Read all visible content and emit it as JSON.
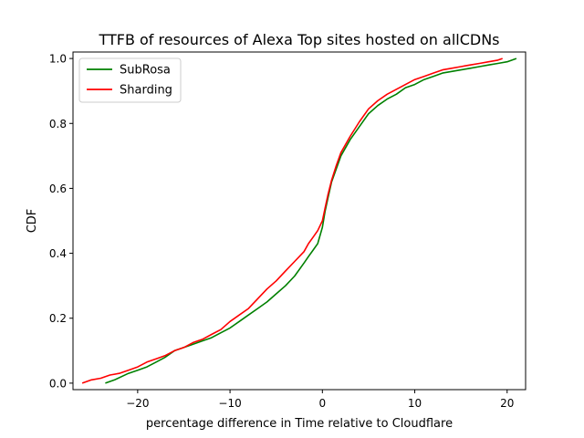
{
  "chart_data": {
    "type": "line",
    "title": "TTFB of resources of Alexa Top sites hosted on allCDNs",
    "xlabel": "percentage difference in Time relative to Cloudflare",
    "ylabel": "CDF",
    "xlim": [
      -27,
      22
    ],
    "ylim": [
      -0.02,
      1.02
    ],
    "xticks": [
      -20,
      -10,
      0,
      10,
      20
    ],
    "xtick_labels": [
      "−20",
      "−10",
      "0",
      "10",
      "20"
    ],
    "yticks": [
      0.0,
      0.2,
      0.4,
      0.6,
      0.8,
      1.0
    ],
    "ytick_labels": [
      "0.0",
      "0.2",
      "0.4",
      "0.6",
      "0.8",
      "1.0"
    ],
    "grid": false,
    "legend_position": "top-left",
    "series": [
      {
        "name": "SubRosa",
        "color": "#008000",
        "x": [
          -23.5,
          -22.5,
          -21.0,
          -20.0,
          -19.0,
          -18.0,
          -17.0,
          -16.0,
          -15.0,
          -14.0,
          -13.0,
          -12.0,
          -11.0,
          -10.0,
          -9.0,
          -8.0,
          -7.0,
          -6.0,
          -5.0,
          -4.0,
          -3.0,
          -2.0,
          -1.5,
          -1.0,
          -0.5,
          0.0,
          0.3,
          0.6,
          1.0,
          1.5,
          2.0,
          3.0,
          4.0,
          5.0,
          6.0,
          7.0,
          8.0,
          9.0,
          10.0,
          11.0,
          12.0,
          13.0,
          14.0,
          15.0,
          16.0,
          17.0,
          18.0,
          19.0,
          20.0,
          21.0
        ],
        "y": [
          0.0,
          0.01,
          0.03,
          0.04,
          0.05,
          0.065,
          0.08,
          0.1,
          0.11,
          0.12,
          0.13,
          0.14,
          0.155,
          0.17,
          0.19,
          0.21,
          0.23,
          0.25,
          0.275,
          0.3,
          0.33,
          0.37,
          0.39,
          0.41,
          0.43,
          0.48,
          0.53,
          0.57,
          0.62,
          0.66,
          0.7,
          0.75,
          0.79,
          0.83,
          0.855,
          0.875,
          0.89,
          0.91,
          0.92,
          0.935,
          0.945,
          0.955,
          0.96,
          0.965,
          0.97,
          0.975,
          0.98,
          0.985,
          0.99,
          1.0
        ]
      },
      {
        "name": "Sharding",
        "color": "#ff0000",
        "x": [
          -26.0,
          -25.0,
          -24.0,
          -23.0,
          -22.0,
          -21.0,
          -20.0,
          -19.0,
          -18.0,
          -17.0,
          -16.0,
          -15.0,
          -14.0,
          -13.0,
          -12.0,
          -11.0,
          -10.0,
          -9.0,
          -8.0,
          -7.0,
          -6.0,
          -5.0,
          -4.0,
          -3.0,
          -2.0,
          -1.5,
          -1.0,
          -0.5,
          0.0,
          0.3,
          0.6,
          1.0,
          1.5,
          2.0,
          3.0,
          4.0,
          5.0,
          6.0,
          7.0,
          8.0,
          9.0,
          10.0,
          11.0,
          12.0,
          13.0,
          14.0,
          15.0,
          16.0,
          17.0,
          18.0,
          19.0,
          19.5
        ],
        "y": [
          0.0,
          0.01,
          0.015,
          0.025,
          0.03,
          0.04,
          0.05,
          0.065,
          0.075,
          0.085,
          0.1,
          0.11,
          0.125,
          0.135,
          0.15,
          0.165,
          0.19,
          0.21,
          0.23,
          0.26,
          0.29,
          0.315,
          0.345,
          0.375,
          0.405,
          0.43,
          0.45,
          0.47,
          0.5,
          0.54,
          0.58,
          0.625,
          0.67,
          0.71,
          0.76,
          0.805,
          0.845,
          0.87,
          0.89,
          0.905,
          0.92,
          0.935,
          0.945,
          0.955,
          0.965,
          0.97,
          0.975,
          0.98,
          0.985,
          0.99,
          0.995,
          1.0
        ]
      }
    ]
  }
}
